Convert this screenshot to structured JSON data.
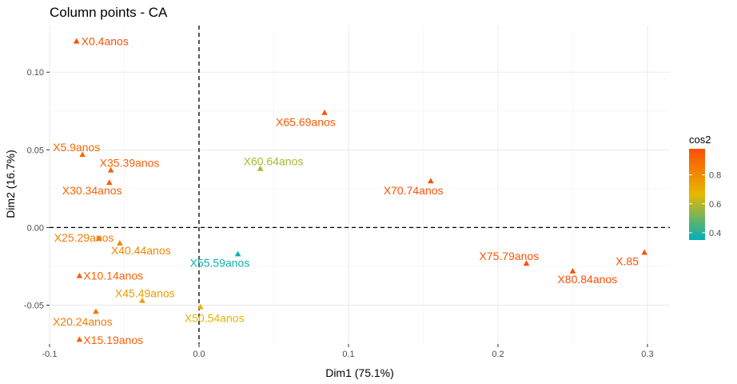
{
  "chart_data": {
    "type": "scatter",
    "title": "Column points - CA",
    "xlabel": "Dim1 (75.1%)",
    "ylabel": "Dim2 (16.7%)",
    "xlim": [
      -0.1,
      0.315
    ],
    "ylim": [
      -0.075,
      0.13
    ],
    "x_ticks": [
      -0.1,
      0.0,
      0.1,
      0.2,
      0.3
    ],
    "x_tick_labels": [
      "-0.1",
      "0.0",
      "0.1",
      "0.2",
      "0.3"
    ],
    "y_ticks": [
      -0.05,
      0.0,
      0.05,
      0.1
    ],
    "y_tick_labels": [
      "-0.05",
      "0.00",
      "0.05",
      "0.10"
    ],
    "grid": true,
    "reference_lines": {
      "x": 0,
      "y": 0,
      "style": "dashed"
    },
    "marker": "triangle",
    "color_scale": {
      "name": "cos2",
      "gradient": [
        "#00AFBB",
        "#E7B800",
        "#FC4E07"
      ],
      "min": 0.35,
      "max": 0.98,
      "tick_values": [
        0.4,
        0.6,
        0.8
      ],
      "tick_labels": [
        "0.4",
        "0.6",
        "0.8"
      ]
    },
    "points": [
      {
        "label": "X0.4anos",
        "x": -0.082,
        "y": 0.12,
        "cos2": 0.97
      },
      {
        "label": "X5.9anos",
        "x": -0.078,
        "y": 0.047,
        "cos2": 0.9
      },
      {
        "label": "X35.39anos",
        "x": -0.059,
        "y": 0.037,
        "cos2": 0.93
      },
      {
        "label": "X30.34anos",
        "x": -0.06,
        "y": 0.029,
        "cos2": 0.92
      },
      {
        "label": "X25.29anos",
        "x": -0.067,
        "y": -0.007,
        "cos2": 0.84
      },
      {
        "label": "X40.44anos",
        "x": -0.053,
        "y": -0.01,
        "cos2": 0.82
      },
      {
        "label": "X10.14anos",
        "x": -0.08,
        "y": -0.031,
        "cos2": 0.92
      },
      {
        "label": "X45.49anos",
        "x": -0.038,
        "y": -0.047,
        "cos2": 0.75
      },
      {
        "label": "X20.24anos",
        "x": -0.069,
        "y": -0.054,
        "cos2": 0.85
      },
      {
        "label": "X15.19anos",
        "x": -0.08,
        "y": -0.072,
        "cos2": 0.93
      },
      {
        "label": "X50.54anos",
        "x": 0.001,
        "y": -0.051,
        "cos2": 0.68
      },
      {
        "label": "X55.59anos",
        "x": 0.026,
        "y": -0.017,
        "cos2": 0.37
      },
      {
        "label": "X60.64anos",
        "x": 0.041,
        "y": 0.038,
        "cos2": 0.58
      },
      {
        "label": "X65.69anos",
        "x": 0.084,
        "y": 0.074,
        "cos2": 0.95
      },
      {
        "label": "X70.74anos",
        "x": 0.155,
        "y": 0.03,
        "cos2": 0.97
      },
      {
        "label": "X75.79anos",
        "x": 0.219,
        "y": -0.023,
        "cos2": 0.97
      },
      {
        "label": "X80.84anos",
        "x": 0.25,
        "y": -0.028,
        "cos2": 0.98
      },
      {
        "label": "X.85",
        "x": 0.298,
        "y": -0.016,
        "cos2": 0.97
      }
    ]
  }
}
